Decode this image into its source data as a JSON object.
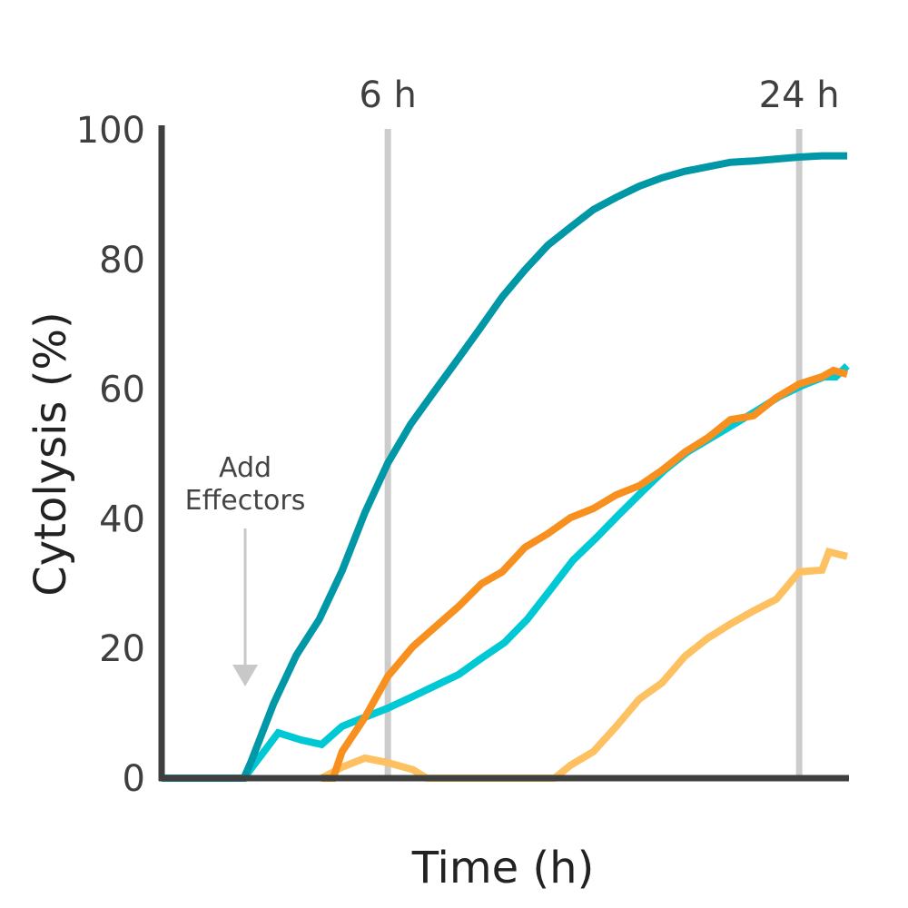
{
  "chart_data": {
    "type": "line",
    "title": "",
    "xlabel": "Time (h)",
    "ylabel": "Cytolysis (%)",
    "xlim": [
      -3.9,
      26.1
    ],
    "ylim": [
      0,
      100
    ],
    "yticks": [
      "0",
      "20",
      "40",
      "60",
      "80",
      "100"
    ],
    "reference_lines": [
      {
        "x": 6,
        "label": "6 h"
      },
      {
        "x": 24,
        "label": "24 h"
      }
    ],
    "annotation": {
      "label_line1": "Add",
      "label_line2": "Effectors",
      "x": -0.3
    },
    "grid": false,
    "series": [
      {
        "color": "#fdc162",
        "x": [
          3.1,
          4.0,
          5.0,
          6.0,
          7.1,
          7.7,
          13.3,
          14.0,
          15.0,
          16.0,
          17.0,
          18.0,
          19.0,
          20.0,
          21.0,
          22.0,
          23.0,
          24.0,
          25.0,
          25.3,
          26.1
        ],
        "y": [
          0,
          1.7,
          3.1,
          2.4,
          1.3,
          0,
          0,
          2.0,
          4.1,
          8.0,
          12.2,
          14.7,
          18.8,
          21.6,
          23.8,
          25.8,
          27.6,
          31.8,
          32.1,
          34.9,
          34.2
        ]
      },
      {
        "color": "#00c8d4",
        "x": [
          -3.9,
          -0.3,
          1.2,
          2.2,
          3.1,
          4.0,
          5.0,
          6.0,
          7.1,
          8.1,
          9.1,
          10.1,
          11.1,
          12.1,
          13.1,
          14.1,
          15.1,
          16.1,
          17.1,
          18.1,
          19.1,
          20.1,
          21.1,
          22.1,
          23.1,
          24.1,
          25.1,
          25.6,
          26.1
        ],
        "y": [
          0,
          0,
          7.0,
          5.9,
          5.2,
          8.0,
          9.4,
          10.8,
          12.6,
          14.3,
          16.0,
          18.5,
          20.9,
          24.5,
          29.0,
          33.6,
          37.0,
          40.6,
          44.1,
          47.5,
          50.3,
          52.4,
          54.5,
          56.6,
          58.8,
          60.5,
          61.9,
          61.9,
          63.6
        ]
      },
      {
        "color": "#f7901e",
        "x": [
          3.1,
          3.6,
          4.0,
          5.0,
          6.0,
          7.1,
          8.1,
          9.1,
          10.1,
          11.0,
          12.0,
          13.0,
          14.0,
          15.0,
          16.0,
          17.0,
          18.0,
          19.0,
          20.0,
          21.0,
          22.0,
          23.0,
          24.0,
          25.0,
          25.5,
          26.1
        ],
        "y": [
          0,
          0,
          4.1,
          9.4,
          15.7,
          20.3,
          23.4,
          26.5,
          30.0,
          31.8,
          35.6,
          37.7,
          40.2,
          41.6,
          43.7,
          45.1,
          47.5,
          50.3,
          52.5,
          55.3,
          55.9,
          58.7,
          60.8,
          61.9,
          62.9,
          62.3
        ]
      },
      {
        "color": "#0097a7",
        "x": [
          -3.9,
          -0.3,
          0,
          1,
          2,
          3,
          4,
          5,
          6,
          7,
          8,
          9,
          10,
          11,
          12,
          13,
          14,
          15,
          16,
          17,
          18,
          19,
          20,
          21,
          22,
          23,
          24,
          25,
          26.1
        ],
        "y": [
          0,
          0,
          2.4,
          11.5,
          19,
          24.5,
          32,
          41,
          48.6,
          54.6,
          59.5,
          64.3,
          69.2,
          74.2,
          78.4,
          82.2,
          85,
          87.7,
          89.6,
          91.3,
          92.6,
          93.6,
          94.3,
          95,
          95.2,
          95.5,
          95.8,
          96,
          96
        ]
      }
    ]
  }
}
